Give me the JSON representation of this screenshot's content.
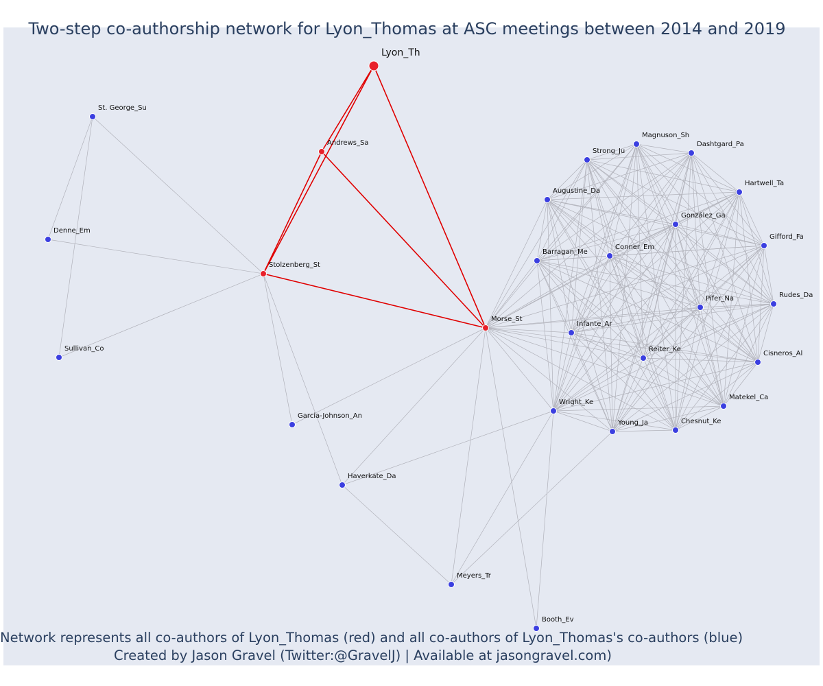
{
  "title": "Two-step co-authorship network for Lyon_Thomas at ASC meetings between 2014 and 2019",
  "caption_line1": "Network represents all co-authors of Lyon_Thomas (red) and all co-authors of Lyon_Thomas's co-authors (blue)",
  "caption_line2": "Created by Jason Gravel (Twitter:@GravelJ) | Available at jasongravel.com)",
  "colors": {
    "red_node": "#e8202a",
    "red_edge": "#e00000",
    "blue_node": "#3b3fe0",
    "grey_edge": "#a0a0a8",
    "background": "#e5e9f2"
  },
  "network": {
    "nodes": [
      {
        "id": "Lyon_Th",
        "label": "Lyon_Th",
        "group": "focal"
      },
      {
        "id": "Andrews_Sa",
        "label": "Andrews_Sa",
        "group": "red"
      },
      {
        "id": "Stolzenberg_St",
        "label": "Stolzenberg_St",
        "group": "red"
      },
      {
        "id": "Morse_St",
        "label": "Morse_St",
        "group": "red"
      },
      {
        "id": "St. George_Su",
        "label": "St. George_Su",
        "group": "blue"
      },
      {
        "id": "Denne_Em",
        "label": "Denne_Em",
        "group": "blue"
      },
      {
        "id": "Sullivan_Co",
        "label": "Sullivan_Co",
        "group": "blue"
      },
      {
        "id": "Garcia-Johnson_An",
        "label": "Garcia-Johnson_An",
        "group": "blue"
      },
      {
        "id": "Haverkate_Da",
        "label": "Haverkate_Da",
        "group": "blue"
      },
      {
        "id": "Meyers_Tr",
        "label": "Meyers_Tr",
        "group": "blue"
      },
      {
        "id": "Booth_Ev",
        "label": "Booth_Ev",
        "group": "blue"
      },
      {
        "id": "Wright_Ke",
        "label": "Wright_Ke",
        "group": "blue"
      },
      {
        "id": "Young_Ja",
        "label": "Young_Ja",
        "group": "blue"
      },
      {
        "id": "Chesnut_Ke",
        "label": "Chesnut_Ke",
        "group": "blue"
      },
      {
        "id": "Matekel_Ca",
        "label": "Matekel_Ca",
        "group": "blue"
      },
      {
        "id": "Cisneros_Al",
        "label": "Cisneros_Al",
        "group": "blue"
      },
      {
        "id": "Rudes_Da",
        "label": "Rudes_Da",
        "group": "blue"
      },
      {
        "id": "Gifford_Fa",
        "label": "Gifford_Fa",
        "group": "blue"
      },
      {
        "id": "Hartwell_Ta",
        "label": "Hartwell_Ta",
        "group": "blue"
      },
      {
        "id": "Dashtgard_Pa",
        "label": "Dashtgard_Pa",
        "group": "blue"
      },
      {
        "id": "Magnuson_Sh",
        "label": "Magnuson_Sh",
        "group": "blue"
      },
      {
        "id": "Strong_Ju",
        "label": "Strong_Ju",
        "group": "blue"
      },
      {
        "id": "Augustine_Da",
        "label": "Augustine_Da",
        "group": "blue"
      },
      {
        "id": "González_Ga",
        "label": "González_Ga",
        "group": "blue"
      },
      {
        "id": "Barragan_Me",
        "label": "Barragan_Me",
        "group": "blue"
      },
      {
        "id": "Conner_Em",
        "label": "Conner_Em",
        "group": "blue"
      },
      {
        "id": "Pifer_Na",
        "label": "Pifer_Na",
        "group": "blue"
      },
      {
        "id": "Infante_Ar",
        "label": "Infante_Ar",
        "group": "blue"
      },
      {
        "id": "Reiter_Ke",
        "label": "Reiter_Ke",
        "group": "blue"
      }
    ],
    "red_edges": [
      [
        "Lyon_Th",
        "Andrews_Sa"
      ],
      [
        "Lyon_Th",
        "Stolzenberg_St"
      ],
      [
        "Lyon_Th",
        "Morse_St"
      ],
      [
        "Andrews_Sa",
        "Stolzenberg_St"
      ],
      [
        "Andrews_Sa",
        "Morse_St"
      ],
      [
        "Stolzenberg_St",
        "Morse_St"
      ]
    ],
    "grey_edges": [
      [
        "St. George_Su",
        "Denne_Em"
      ],
      [
        "St. George_Su",
        "Sullivan_Co"
      ],
      [
        "St. George_Su",
        "Stolzenberg_St"
      ],
      [
        "Denne_Em",
        "Stolzenberg_St"
      ],
      [
        "Sullivan_Co",
        "Stolzenberg_St"
      ],
      [
        "Stolzenberg_St",
        "Garcia-Johnson_An"
      ],
      [
        "Stolzenberg_St",
        "Haverkate_Da"
      ],
      [
        "Garcia-Johnson_An",
        "Morse_St"
      ],
      [
        "Haverkate_Da",
        "Morse_St"
      ],
      [
        "Haverkate_Da",
        "Meyers_Tr"
      ],
      [
        "Haverkate_Da",
        "Wright_Ke"
      ],
      [
        "Meyers_Tr",
        "Morse_St"
      ],
      [
        "Meyers_Tr",
        "Wright_Ke"
      ],
      [
        "Meyers_Tr",
        "Young_Ja"
      ],
      [
        "Booth_Ev",
        "Morse_St"
      ],
      [
        "Booth_Ev",
        "Wright_Ke"
      ]
    ],
    "cluster": [
      "Morse_St",
      "Wright_Ke",
      "Young_Ja",
      "Chesnut_Ke",
      "Matekel_Ca",
      "Cisneros_Al",
      "Rudes_Da",
      "Gifford_Fa",
      "Hartwell_Ta",
      "Dashtgard_Pa",
      "Magnuson_Sh",
      "Strong_Ju",
      "Augustine_Da",
      "González_Ga",
      "Barragan_Me",
      "Conner_Em",
      "Pifer_Na",
      "Infante_Ar",
      "Reiter_Ke"
    ]
  }
}
